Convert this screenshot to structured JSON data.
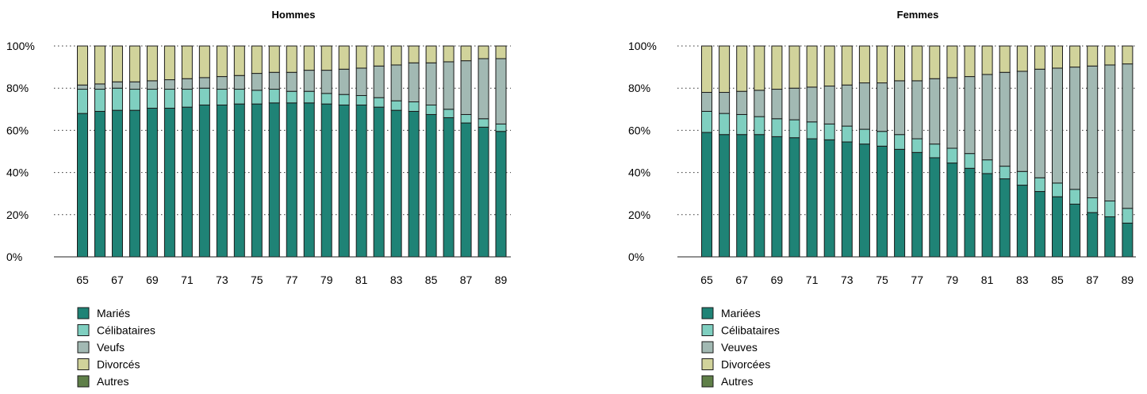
{
  "chart_data": [
    {
      "type": "bar",
      "stacked": true,
      "percent": true,
      "title": "Hommes",
      "categories": [
        "65",
        "66",
        "67",
        "68",
        "69",
        "70",
        "71",
        "72",
        "73",
        "74",
        "75",
        "76",
        "77",
        "78",
        "79",
        "80",
        "81",
        "82",
        "83",
        "84",
        "85",
        "86",
        "87",
        "88",
        "89"
      ],
      "x_tick_labels": [
        "65",
        "67",
        "69",
        "71",
        "73",
        "75",
        "77",
        "79",
        "81",
        "83",
        "85",
        "87",
        "89"
      ],
      "y_ticks": [
        "0%",
        "20%",
        "40%",
        "60%",
        "80%",
        "100%"
      ],
      "ylim": [
        0,
        100
      ],
      "grid": "dotted horizontal",
      "legend_position": "bottom-left",
      "series": [
        {
          "name": "Mariés",
          "color": "#1f8376",
          "values": [
            68,
            69,
            69.5,
            69.5,
            70.5,
            70.5,
            71,
            72,
            72,
            72.5,
            72.5,
            73,
            73,
            73,
            72.5,
            72,
            72,
            71,
            69.5,
            69,
            67.5,
            66,
            63.5,
            61.5,
            59.5
          ]
        },
        {
          "name": "Célibataires",
          "color": "#7fcfc0",
          "values": [
            11.5,
            10.5,
            10.5,
            10,
            9,
            9,
            8.5,
            8,
            7.5,
            7,
            6.5,
            6.5,
            5.5,
            5.5,
            5,
            5,
            4.5,
            4.5,
            4.5,
            4.5,
            4.5,
            4,
            4,
            4,
            3.5
          ]
        },
        {
          "name": "Veufs",
          "color": "#a2b9b3",
          "values": [
            2,
            2.5,
            3,
            3.5,
            4,
            4.5,
            5,
            5,
            6,
            6.5,
            8,
            8,
            9,
            10,
            11,
            12,
            13,
            15,
            17,
            18.5,
            20,
            22.5,
            25.5,
            28.5,
            31
          ]
        },
        {
          "name": "Divorcés",
          "color": "#d1d39b",
          "values": [
            18.5,
            18,
            17,
            17,
            16.5,
            16,
            15.5,
            15,
            14.5,
            14,
            13,
            12.5,
            12.5,
            11.5,
            11.5,
            11,
            10.5,
            9.5,
            9,
            8,
            8,
            7.5,
            7,
            6,
            6
          ]
        },
        {
          "name": "Autres",
          "color": "#5f7f48",
          "values": [
            0,
            0,
            0,
            0,
            0,
            0,
            0,
            0,
            0,
            0,
            0,
            0,
            0,
            0,
            0,
            0,
            0,
            0,
            0,
            0,
            0,
            0,
            0,
            0,
            0
          ]
        }
      ]
    },
    {
      "type": "bar",
      "stacked": true,
      "percent": true,
      "title": "Femmes",
      "categories": [
        "65",
        "66",
        "67",
        "68",
        "69",
        "70",
        "71",
        "72",
        "73",
        "74",
        "75",
        "76",
        "77",
        "78",
        "79",
        "80",
        "81",
        "82",
        "83",
        "84",
        "85",
        "86",
        "87",
        "88",
        "89"
      ],
      "x_tick_labels": [
        "65",
        "67",
        "69",
        "71",
        "73",
        "75",
        "77",
        "79",
        "81",
        "83",
        "85",
        "87",
        "89"
      ],
      "y_ticks": [
        "0%",
        "20%",
        "40%",
        "60%",
        "80%",
        "100%"
      ],
      "ylim": [
        0,
        100
      ],
      "grid": "dotted horizontal",
      "legend_position": "bottom-left",
      "series": [
        {
          "name": "Mariées",
          "color": "#1f8376",
          "values": [
            59,
            58,
            58,
            58,
            57,
            56.5,
            56,
            55.5,
            54.5,
            53.5,
            52.5,
            51,
            49.5,
            47,
            44.5,
            42,
            39.5,
            37,
            34,
            31,
            28.5,
            25,
            21,
            19,
            16
          ]
        },
        {
          "name": "Célibataires",
          "color": "#7fcfc0",
          "values": [
            10,
            10,
            9.5,
            8.5,
            8.5,
            8.5,
            8,
            7.5,
            7.5,
            7,
            7,
            7,
            6.5,
            6.5,
            7,
            7,
            6.5,
            6,
            6.5,
            6.5,
            6.5,
            7,
            7,
            7.5,
            7
          ]
        },
        {
          "name": "Veuves",
          "color": "#a2b9b3",
          "values": [
            9,
            10,
            11,
            12.5,
            14,
            15,
            16.5,
            18,
            19.5,
            22,
            23,
            25.5,
            27.5,
            31,
            33.5,
            36.5,
            40.5,
            44.5,
            47.5,
            51.5,
            54.5,
            58,
            62.5,
            64.5,
            68.5
          ]
        },
        {
          "name": "Divorcées",
          "color": "#d1d39b",
          "values": [
            22,
            22,
            21.5,
            21,
            20.5,
            20,
            19.5,
            19,
            18.5,
            17.5,
            17.5,
            16.5,
            16.5,
            15.5,
            15,
            14.5,
            13.5,
            12.5,
            12,
            11,
            10.5,
            10,
            9.5,
            9,
            8.5
          ]
        },
        {
          "name": "Autres",
          "color": "#5f7f48",
          "values": [
            0,
            0,
            0,
            0,
            0,
            0,
            0,
            0,
            0,
            0,
            0,
            0,
            0,
            0,
            0,
            0,
            0,
            0,
            0,
            0,
            0,
            0,
            0,
            0,
            0
          ]
        }
      ]
    }
  ]
}
